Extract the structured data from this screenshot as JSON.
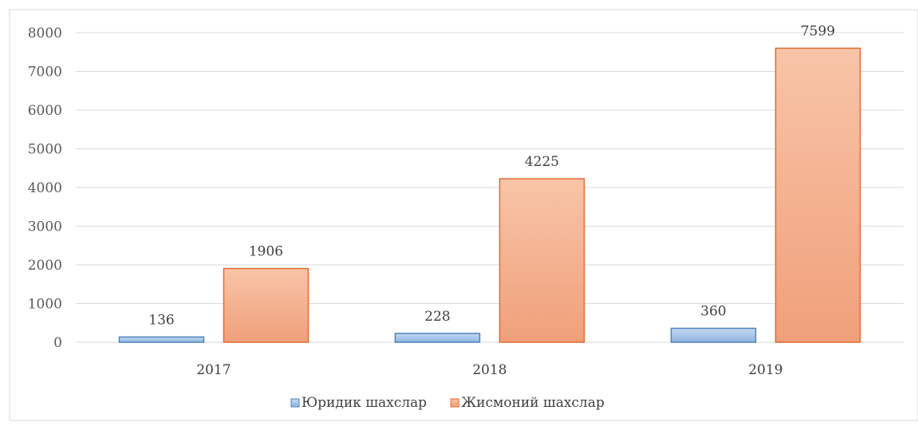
{
  "chart_data": {
    "type": "bar",
    "title": "",
    "xlabel": "",
    "ylabel": "",
    "categories": [
      "2017",
      "2018",
      "2019"
    ],
    "series": [
      {
        "name": "Юридик шахслар",
        "values": [
          136,
          228,
          360
        ],
        "color": "#8db3e2",
        "stroke": "#4f81bd"
      },
      {
        "name": "Жисмоний шахслар",
        "values": [
          1906,
          4225,
          7599
        ],
        "color": "#f4a582",
        "stroke": "#e26b30"
      }
    ],
    "ylim": [
      0,
      8000
    ],
    "yticks": [
      0,
      1000,
      2000,
      3000,
      4000,
      5000,
      6000,
      7000,
      8000
    ],
    "grid": true,
    "legend_position": "bottom"
  }
}
